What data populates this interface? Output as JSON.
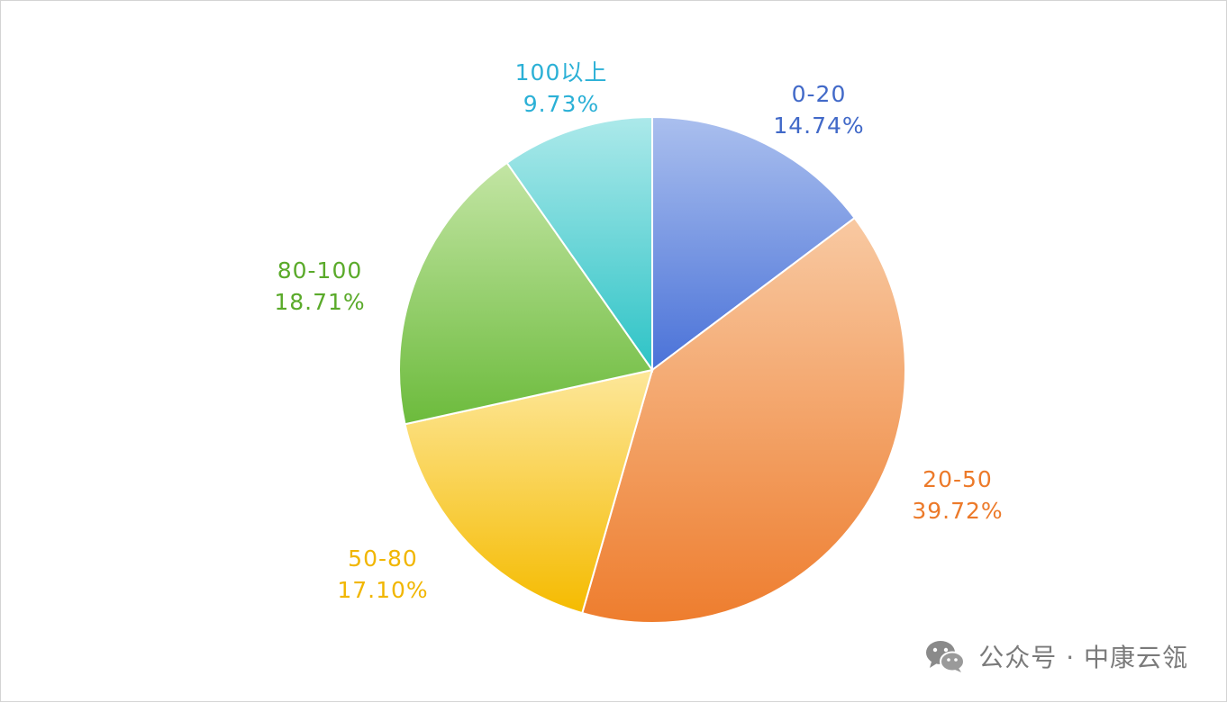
{
  "chart_data": {
    "type": "pie",
    "title": "",
    "slices": [
      {
        "label": "0-20",
        "value": 14.74,
        "percent_text": "14.74%",
        "color_light": "#aabfee",
        "color_dark": "#4a72d8",
        "label_color": "#4169c8"
      },
      {
        "label": "20-50",
        "value": 39.72,
        "percent_text": "39.72%",
        "color_light": "#f8c9a2",
        "color_dark": "#ee7d2e",
        "label_color": "#ec7a2a"
      },
      {
        "label": "50-80",
        "value": 17.1,
        "percent_text": "17.10%",
        "color_light": "#fde79a",
        "color_dark": "#f5bb00",
        "label_color": "#f1b600"
      },
      {
        "label": "80-100",
        "value": 18.71,
        "percent_text": "18.71%",
        "color_light": "#c3e5a4",
        "color_dark": "#6cbb3c",
        "label_color": "#5aaa2a"
      },
      {
        "label": "100以上",
        "value": 9.73,
        "percent_text": "9.73%",
        "color_light": "#ace9ea",
        "color_dark": "#2dc3c6",
        "label_color": "#2bb0d6"
      }
    ],
    "start_angle_deg": 0,
    "direction": "clockwise",
    "legend": "none",
    "data_labels": "outside"
  },
  "watermark": {
    "icon": "wechat-icon",
    "text": "公众号 · 中康云瓴",
    "color": "#7a7a7a"
  }
}
